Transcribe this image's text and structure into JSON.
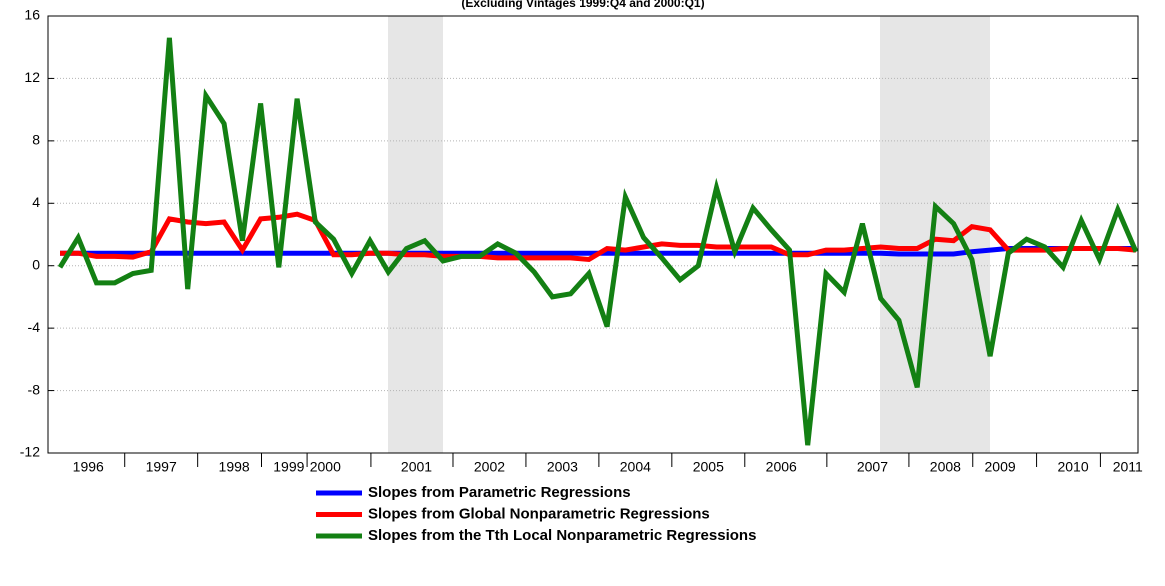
{
  "chart_data": {
    "type": "line",
    "title": "(Excluding Vintages 1999:Q4 and 2000:Q1)",
    "categories": [
      null,
      "1996",
      null,
      null,
      null,
      "1997",
      null,
      null,
      null,
      "1998",
      null,
      null,
      "1999",
      null,
      "2000",
      null,
      null,
      null,
      null,
      "2001",
      null,
      null,
      null,
      "2002",
      null,
      null,
      null,
      "2003",
      null,
      null,
      null,
      "2004",
      null,
      null,
      null,
      "2005",
      null,
      null,
      null,
      "2006",
      null,
      null,
      null,
      null,
      "2007",
      null,
      null,
      null,
      "2008",
      null,
      null,
      "2009",
      null,
      null,
      null,
      "2010",
      null,
      null,
      "2011",
      null
    ],
    "ylim": [
      -12,
      16
    ],
    "yticks": [
      -12,
      -8,
      -4,
      0,
      4,
      8,
      12,
      16
    ],
    "grid": true,
    "series": [
      {
        "name": "Slopes from Parametric Regressions",
        "color": "#0000ff",
        "values": [
          0.8,
          0.8,
          0.8,
          0.8,
          0.8,
          0.8,
          0.8,
          0.8,
          0.8,
          0.8,
          0.8,
          0.8,
          0.8,
          0.8,
          0.8,
          0.8,
          0.8,
          0.8,
          0.8,
          0.8,
          0.8,
          0.8,
          0.8,
          0.8,
          0.8,
          0.8,
          0.8,
          0.8,
          0.8,
          0.8,
          0.8,
          0.8,
          0.8,
          0.8,
          0.8,
          0.8,
          0.8,
          0.8,
          0.8,
          0.8,
          0.8,
          0.8,
          0.8,
          0.8,
          0.8,
          0.8,
          0.75,
          0.75,
          0.75,
          0.75,
          0.9,
          1.0,
          1.1,
          1.1,
          1.1,
          1.1,
          1.1,
          1.1,
          1.1,
          1.1
        ]
      },
      {
        "name": "Slopes from Global Nonparametric Regressions",
        "color": "#ff0000",
        "values": [
          0.8,
          0.8,
          0.6,
          0.6,
          0.55,
          0.9,
          3.0,
          2.8,
          2.7,
          2.8,
          1.0,
          3.0,
          3.1,
          3.3,
          2.9,
          0.7,
          0.7,
          0.8,
          0.8,
          0.7,
          0.7,
          0.6,
          0.6,
          0.6,
          0.5,
          0.5,
          0.5,
          0.5,
          0.5,
          0.4,
          1.1,
          1.0,
          1.2,
          1.4,
          1.3,
          1.3,
          1.2,
          1.2,
          1.2,
          1.2,
          0.7,
          0.7,
          1.0,
          1.0,
          1.1,
          1.2,
          1.1,
          1.1,
          1.7,
          1.6,
          2.5,
          2.3,
          1.0,
          1.0,
          1.0,
          1.1,
          1.1,
          1.1,
          1.1,
          1.0
        ]
      },
      {
        "name": "Slopes from the Tth Local Nonparametric Regressions",
        "color": "#138013",
        "values": [
          -0.1,
          1.8,
          -1.1,
          -1.1,
          -0.5,
          -0.3,
          14.6,
          -1.5,
          10.9,
          9.1,
          1.6,
          10.4,
          -0.1,
          10.7,
          2.8,
          1.7,
          -0.5,
          1.6,
          -0.4,
          1.1,
          1.6,
          0.3,
          0.6,
          0.6,
          1.4,
          0.8,
          -0.4,
          -2.0,
          -1.8,
          -0.5,
          -3.9,
          4.4,
          1.8,
          0.5,
          -0.9,
          0.0,
          5.0,
          0.9,
          3.7,
          2.3,
          1.0,
          -11.5,
          -0.5,
          -1.7,
          2.7,
          -2.1,
          -3.5,
          -7.8,
          3.8,
          2.7,
          0.4,
          -5.8,
          0.8,
          1.7,
          1.2,
          -0.1,
          2.9,
          0.4,
          3.6,
          0.9
        ]
      }
    ]
  }
}
